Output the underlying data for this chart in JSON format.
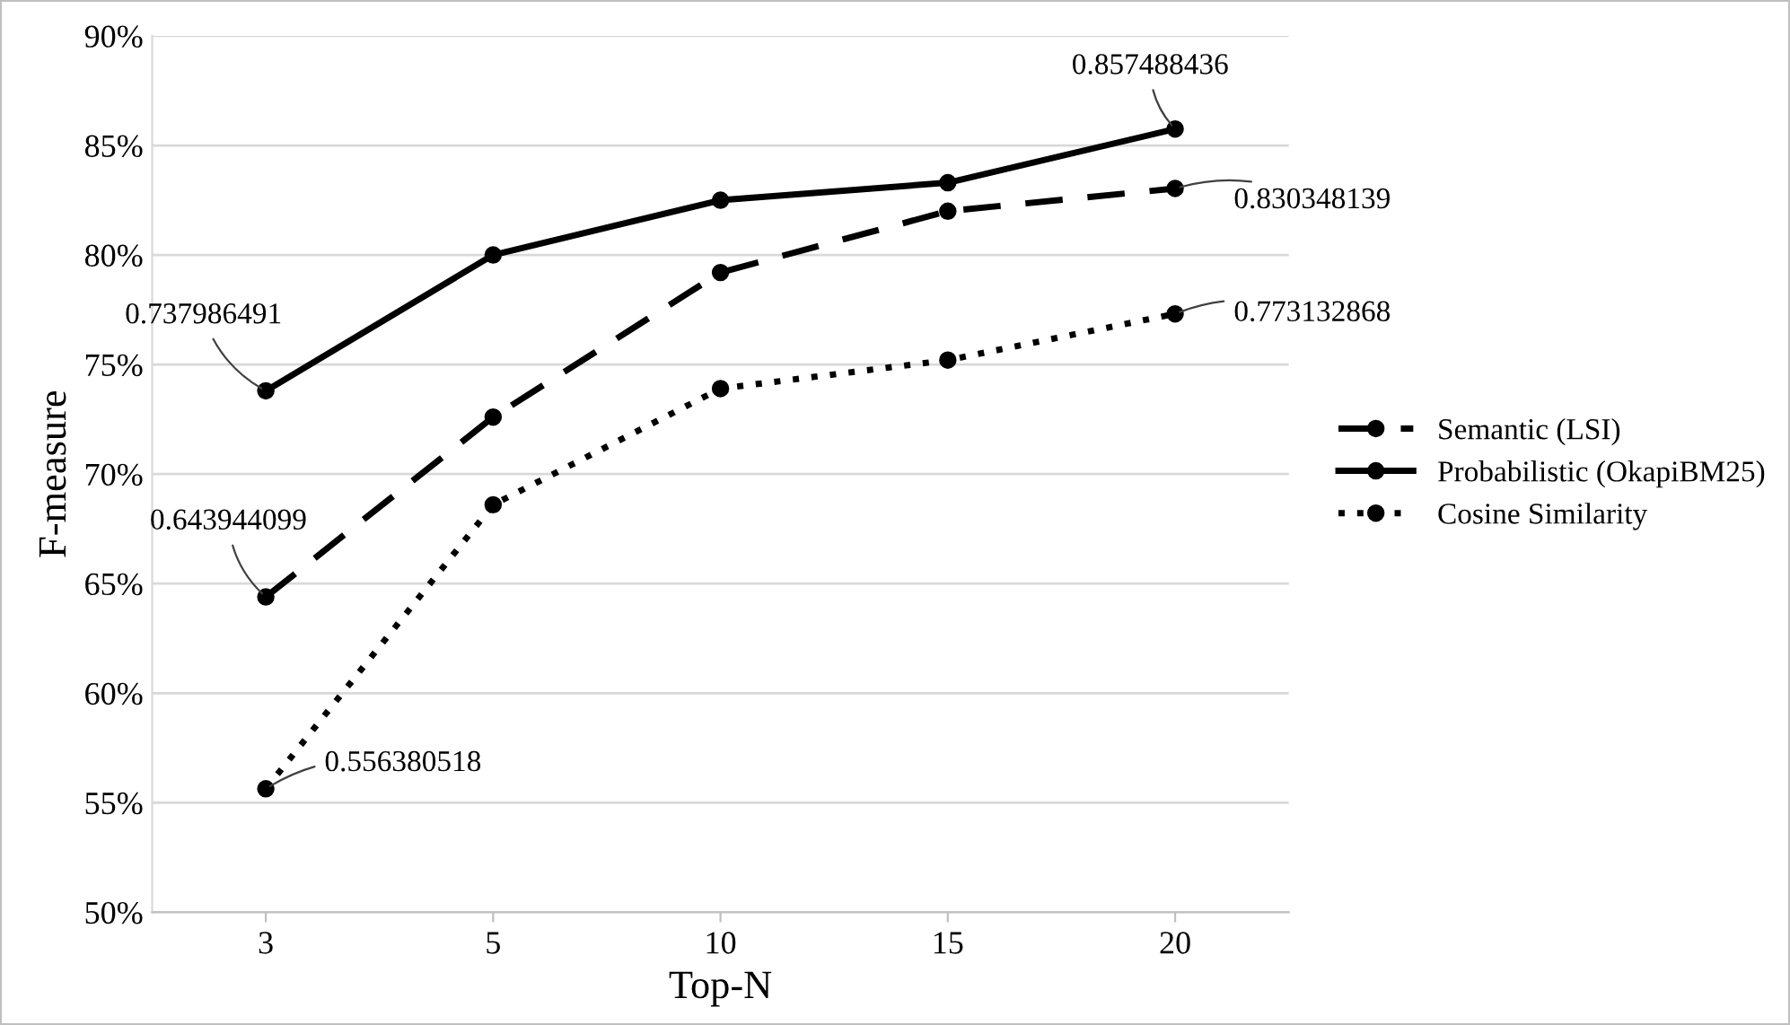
{
  "chart_data": {
    "type": "line",
    "xlabel": "Top-N",
    "ylabel": "F-measure",
    "categories": [
      "3",
      "5",
      "10",
      "15",
      "20"
    ],
    "series": [
      {
        "name": "Semantic (LSI)",
        "color": "#000000",
        "line_style": "dashed",
        "values": [
          0.643944099,
          0.726,
          0.792,
          0.82,
          0.830348139
        ],
        "value_labels": [
          "0.643944099",
          null,
          null,
          null,
          "0.830348139"
        ]
      },
      {
        "name": "Probabilistic (OkapiBM25)",
        "color": "#000000",
        "line_style": "solid",
        "values": [
          0.737986491,
          0.8,
          0.825,
          0.833,
          0.857488436
        ],
        "value_labels": [
          "0.737986491",
          null,
          null,
          null,
          "0.857488436"
        ]
      },
      {
        "name": "Cosine Similarity",
        "color": "#000000",
        "line_style": "dotted",
        "values": [
          0.556380518,
          0.686,
          0.739,
          0.752,
          0.773132868
        ],
        "value_labels": [
          "0.556380518",
          null,
          null,
          null,
          "0.773132868"
        ]
      }
    ],
    "marker": "circle",
    "ylim": [
      0.5,
      0.9
    ],
    "yticks": [
      {
        "value": 0.5,
        "label": "50%"
      },
      {
        "value": 0.55,
        "label": "55%"
      },
      {
        "value": 0.6,
        "label": "60%"
      },
      {
        "value": 0.65,
        "label": "65%"
      },
      {
        "value": 0.7,
        "label": "70%"
      },
      {
        "value": 0.75,
        "label": "75%"
      },
      {
        "value": 0.8,
        "label": "80%"
      },
      {
        "value": 0.85,
        "label": "85%"
      },
      {
        "value": 0.9,
        "label": "90%"
      }
    ],
    "grid": "y",
    "legend": "right"
  }
}
